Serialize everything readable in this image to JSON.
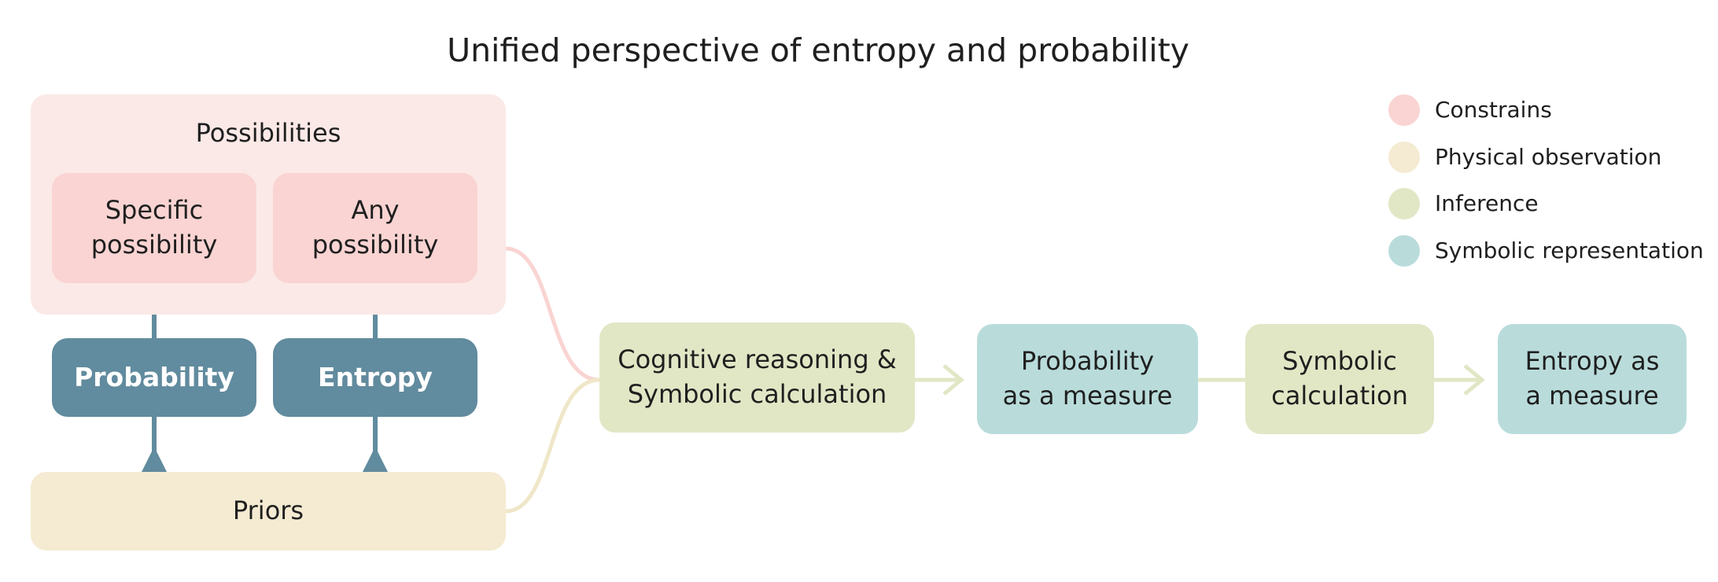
{
  "title": "Unified perspective of entropy and probability",
  "colors": {
    "constrains": "#F9D4D2",
    "constrains_panel": "#FBE9E7",
    "physical_observation": "#F4EBD2",
    "inference": "#E1E7C5",
    "symbolic_representation": "#B9DCDB",
    "core_concept": "#618B9E"
  },
  "possibilities": {
    "title": "Possibilities",
    "specific": [
      "Specific",
      "possibility"
    ],
    "any": [
      "Any",
      "possibility"
    ]
  },
  "core": {
    "probability": "Probability",
    "entropy": "Entropy"
  },
  "priors": "Priors",
  "flow": {
    "cognitive": [
      "Cognitive reasoning &",
      "Symbolic calculation"
    ],
    "probability_measure": [
      "Probability",
      "as a measure"
    ],
    "symbolic_calc": [
      "Symbolic",
      "calculation"
    ],
    "entropy_measure": [
      "Entropy as",
      "a measure"
    ]
  },
  "legend": [
    {
      "label": "Constrains",
      "color": "#F9D4D2"
    },
    {
      "label": "Physical observation",
      "color": "#F4EBD2"
    },
    {
      "label": "Inference",
      "color": "#E1E7C5"
    },
    {
      "label": "Symbolic representation",
      "color": "#B9DCDB"
    }
  ]
}
